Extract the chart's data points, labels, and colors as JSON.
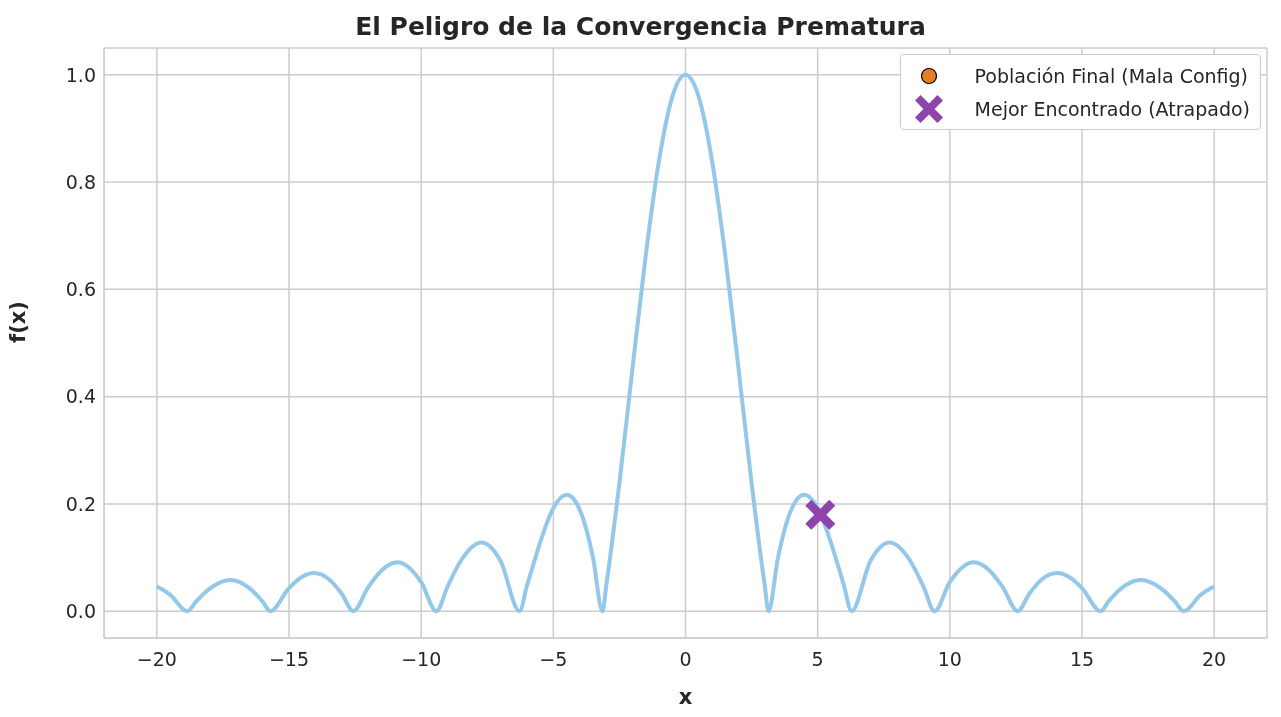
{
  "chart_data": {
    "type": "line",
    "title": "El Peligro de la Convergencia Prematura",
    "xlabel": "x",
    "ylabel": "f(x)",
    "xlim": [
      -22,
      22
    ],
    "ylim": [
      -0.05,
      1.05
    ],
    "xticks": [
      {
        "value": -20,
        "label": "−20"
      },
      {
        "value": -15,
        "label": "−15"
      },
      {
        "value": -10,
        "label": "−10"
      },
      {
        "value": -5,
        "label": "−5"
      },
      0,
      5,
      10,
      15,
      20
    ],
    "yticks": [
      {
        "value": 0,
        "label": "0.0"
      },
      {
        "value": 0.2,
        "label": "0.2"
      },
      {
        "value": 0.4,
        "label": "0.4"
      },
      {
        "value": 0.6,
        "label": "0.6"
      },
      {
        "value": 0.8,
        "label": "0.8"
      },
      {
        "value": 1,
        "label": "1.0"
      }
    ],
    "grid": true,
    "legend": "top right",
    "line_style": "solid",
    "series": [
      {
        "color": "#93c8ea",
        "marker": "none",
        "x": [
          -20,
          -19.5,
          -18.85,
          -18.5,
          -18,
          -17.22,
          -16.5,
          -16,
          -15.71,
          -15,
          -14.5,
          -14.07,
          -13.5,
          -13,
          -12.57,
          -12,
          -11.5,
          -10.9,
          -10,
          -9.42,
          -9,
          -8.5,
          -7.72,
          -7,
          -6.28,
          -6,
          -5.5,
          -5.2,
          -5,
          -4.49,
          -4,
          -3.8,
          -3.5,
          -3.14,
          -3,
          -2.5,
          -2,
          -1.5,
          -1,
          -0.5,
          0,
          0.5,
          1,
          1.5,
          2,
          2.5,
          3,
          3.14,
          3.5,
          3.8,
          4,
          4.49,
          5,
          5.2,
          5.5,
          6,
          6.28,
          7,
          7.72,
          8.5,
          9,
          9.42,
          10,
          10.9,
          11.5,
          12,
          12.57,
          13,
          13.5,
          14.07,
          14.5,
          15,
          15.71,
          16,
          16.5,
          17.22,
          18,
          18.5,
          18.85,
          19.5,
          20
        ],
        "values": [
          0.046,
          0.031,
          0,
          0.019,
          0.042,
          0.058,
          0.043,
          0.018,
          0,
          0.043,
          0.064,
          0.071,
          0.06,
          0.032,
          0,
          0.045,
          0.076,
          0.091,
          0.054,
          0,
          0.046,
          0.094,
          0.128,
          0.094,
          0,
          0.047,
          0.128,
          0.17,
          0.192,
          0.217,
          0.189,
          0.161,
          0.1,
          0,
          0.047,
          0.239,
          0.455,
          0.665,
          0.841,
          0.959,
          1,
          0.959,
          0.841,
          0.665,
          0.455,
          0.239,
          0.047,
          0,
          0.1,
          0.161,
          0.189,
          0.217,
          0.192,
          0.17,
          0.128,
          0.047,
          0,
          0.094,
          0.128,
          0.094,
          0.046,
          0,
          0.054,
          0.091,
          0.076,
          0.045,
          0,
          0.032,
          0.06,
          0.071,
          0.064,
          0.043,
          0,
          0.018,
          0.043,
          0.058,
          0.042,
          0.019,
          0,
          0.031,
          0.046
        ]
      },
      {
        "type": "scatter",
        "name": "Población Final (Mala Config)",
        "color": "#e67e22",
        "marker": "circle"
      },
      {
        "type": "scatter",
        "name": "Mejor Encontrado (Atrapado)",
        "color": "#8e44ad",
        "marker": "cross",
        "x": [
          5.1
        ],
        "values": [
          0.18
        ]
      }
    ]
  }
}
